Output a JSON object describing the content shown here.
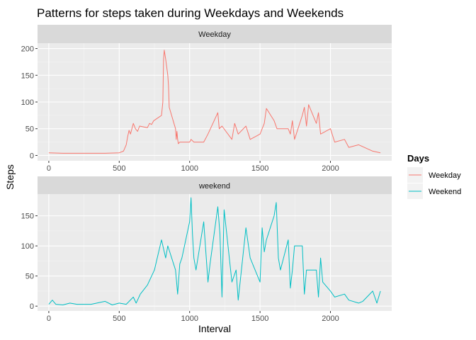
{
  "chart_data": {
    "type": "line",
    "title": "Patterns for steps taken during Weekdays and Weekends",
    "xlabel": "Interval",
    "ylabel": "Steps",
    "xlim": [
      -80,
      2435
    ],
    "x_ticks": [
      0,
      500,
      1000,
      1500,
      2000
    ],
    "grid": true,
    "legend": {
      "title": "Days",
      "placement": "right",
      "entries": [
        {
          "label": "Weekday",
          "color": "#F8766D"
        },
        {
          "label": "Weekend",
          "color": "#00BFC4"
        }
      ]
    },
    "panels": [
      {
        "strip": "Weekday",
        "color": "#F8766D",
        "ylim": [
          -10,
          210
        ],
        "y_ticks": [
          0,
          50,
          100,
          150,
          200
        ],
        "series": {
          "name": "Weekday",
          "x": [
            0,
            100,
            200,
            300,
            400,
            500,
            530,
            550,
            560,
            570,
            580,
            600,
            615,
            630,
            645,
            700,
            715,
            730,
            745,
            800,
            810,
            815,
            820,
            830,
            835,
            840,
            845,
            850,
            855,
            900,
            905,
            910,
            915,
            920,
            930,
            1000,
            1010,
            1030,
            1100,
            1130,
            1200,
            1210,
            1230,
            1300,
            1320,
            1345,
            1400,
            1430,
            1500,
            1530,
            1545,
            1600,
            1620,
            1700,
            1715,
            1730,
            1745,
            1800,
            1815,
            1830,
            1845,
            1900,
            1915,
            1930,
            2000,
            2030,
            2100,
            2130,
            2200,
            2300,
            2355
          ],
          "y": [
            5,
            4,
            4,
            4,
            4,
            5,
            8,
            20,
            35,
            47,
            40,
            60,
            50,
            45,
            55,
            52,
            60,
            58,
            65,
            75,
            100,
            180,
            197,
            180,
            170,
            160,
            150,
            130,
            90,
            50,
            30,
            45,
            30,
            22,
            25,
            25,
            30,
            25,
            25,
            40,
            80,
            50,
            55,
            30,
            60,
            40,
            55,
            30,
            40,
            60,
            88,
            65,
            50,
            50,
            40,
            65,
            30,
            75,
            90,
            55,
            95,
            60,
            80,
            40,
            50,
            25,
            30,
            15,
            20,
            8,
            5
          ]
        }
      },
      {
        "strip": "weekend",
        "color": "#00BFC4",
        "ylim": [
          -8,
          186
        ],
        "y_ticks": [
          0,
          50,
          100,
          150
        ],
        "series": {
          "name": "Weekend",
          "x": [
            0,
            25,
            50,
            100,
            150,
            200,
            300,
            400,
            450,
            500,
            550,
            600,
            620,
            650,
            700,
            750,
            800,
            820,
            830,
            845,
            900,
            915,
            930,
            945,
            1000,
            1010,
            1020,
            1030,
            1045,
            1100,
            1130,
            1145,
            1200,
            1215,
            1230,
            1245,
            1300,
            1330,
            1345,
            1400,
            1430,
            1500,
            1515,
            1530,
            1545,
            1600,
            1615,
            1630,
            1645,
            1700,
            1715,
            1730,
            1745,
            1800,
            1815,
            1830,
            1900,
            1915,
            1930,
            1945,
            2000,
            2030,
            2100,
            2130,
            2200,
            2230,
            2300,
            2330,
            2355
          ],
          "y": [
            3,
            10,
            3,
            2,
            5,
            3,
            3,
            8,
            2,
            5,
            3,
            15,
            5,
            20,
            35,
            60,
            110,
            90,
            80,
            100,
            60,
            20,
            70,
            80,
            140,
            180,
            120,
            80,
            60,
            140,
            40,
            70,
            165,
            120,
            15,
            160,
            40,
            60,
            10,
            130,
            80,
            40,
            130,
            90,
            110,
            150,
            172,
            80,
            60,
            110,
            30,
            60,
            100,
            100,
            20,
            60,
            60,
            15,
            80,
            40,
            25,
            15,
            20,
            10,
            5,
            8,
            25,
            5,
            25
          ]
        }
      }
    ]
  }
}
